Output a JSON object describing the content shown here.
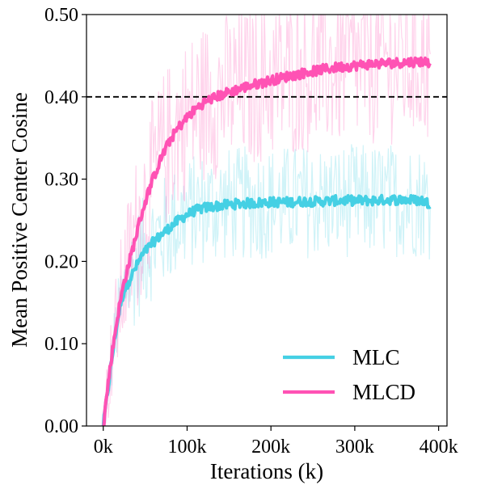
{
  "chart_data": {
    "type": "line",
    "title": "",
    "xlabel": "Iterations (k)",
    "ylabel": "Mean Positive Center Cosine",
    "xlim": [
      -20,
      410
    ],
    "ylim": [
      0,
      0.5
    ],
    "x_ticks": [
      0,
      100,
      200,
      300,
      400
    ],
    "x_tick_labels": [
      "0k",
      "100k",
      "200k",
      "300k",
      "400k"
    ],
    "y_ticks": [
      0,
      0.1,
      0.2,
      0.3,
      0.4,
      0.5
    ],
    "y_tick_labels": [
      "0.00",
      "0.10",
      "0.20",
      "0.30",
      "0.40",
      "0.50"
    ],
    "grid": false,
    "legend_position": "bottom-right",
    "reference_line": {
      "y": 0.4,
      "style": "dashed",
      "color": "#000000"
    },
    "series": [
      {
        "name": "MLC",
        "color": "#45d0e4",
        "x": [
          0,
          5,
          10,
          15,
          20,
          25,
          30,
          35,
          40,
          45,
          50,
          55,
          60,
          70,
          80,
          90,
          100,
          110,
          120,
          140,
          160,
          180,
          200,
          220,
          240,
          260,
          280,
          300,
          320,
          340,
          360,
          380,
          390
        ],
        "values": [
          0.0,
          0.04,
          0.08,
          0.115,
          0.145,
          0.165,
          0.175,
          0.185,
          0.195,
          0.205,
          0.212,
          0.218,
          0.224,
          0.233,
          0.242,
          0.25,
          0.257,
          0.262,
          0.265,
          0.268,
          0.27,
          0.271,
          0.272,
          0.272,
          0.273,
          0.273,
          0.274,
          0.274,
          0.274,
          0.275,
          0.275,
          0.274,
          0.27
        ],
        "noise_band": 0.07
      },
      {
        "name": "MLCD",
        "color": "#ff52b4",
        "x": [
          0,
          5,
          10,
          15,
          20,
          25,
          30,
          35,
          40,
          45,
          50,
          55,
          60,
          70,
          80,
          90,
          100,
          110,
          120,
          130,
          140,
          150,
          160,
          180,
          200,
          220,
          240,
          260,
          280,
          300,
          320,
          340,
          360,
          380,
          390
        ],
        "values": [
          0.0,
          0.045,
          0.085,
          0.12,
          0.15,
          0.175,
          0.195,
          0.215,
          0.235,
          0.255,
          0.272,
          0.288,
          0.302,
          0.328,
          0.348,
          0.363,
          0.375,
          0.385,
          0.393,
          0.398,
          0.402,
          0.406,
          0.409,
          0.415,
          0.42,
          0.425,
          0.429,
          0.433,
          0.436,
          0.438,
          0.44,
          0.441,
          0.442,
          0.443,
          0.442
        ],
        "noise_band": 0.1
      }
    ]
  }
}
